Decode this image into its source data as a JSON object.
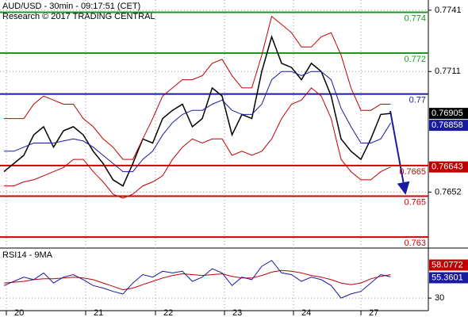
{
  "chart_data": [
    {
      "type": "line",
      "title": "AUD/USD - 30min - 09:17:51 (CET)",
      "subtitle": "Research © 2017 TRADING CENTRAL",
      "x": [
        0,
        1,
        2,
        3,
        4,
        5,
        6,
        7,
        8,
        9,
        10,
        11,
        12,
        13,
        14,
        15,
        16,
        17,
        18,
        19,
        20,
        21,
        22,
        23,
        24,
        25,
        26,
        27,
        28,
        29,
        30,
        31,
        32,
        33,
        34,
        35,
        36,
        37,
        38,
        39
      ],
      "xlim": [
        -0.4,
        42.8
      ],
      "ylim": [
        0.7625,
        0.7746
      ],
      "yticks": [
        0.7652,
        0.7711,
        0.7741
      ],
      "grid": true,
      "series": [
        {
          "color": "#000000",
          "values": [
            0.7662,
            0.7666,
            0.767,
            0.768,
            0.7684,
            0.7674,
            0.7682,
            0.7684,
            0.768,
            0.7672,
            0.7666,
            0.7658,
            0.7655,
            0.7666,
            0.7678,
            0.7676,
            0.7688,
            0.7692,
            0.7695,
            0.7684,
            0.7688,
            0.7703,
            0.7699,
            0.768,
            0.769,
            0.7688,
            0.7711,
            0.7728,
            0.7715,
            0.7713,
            0.7707,
            0.7715,
            0.7711,
            0.7699,
            0.7678,
            0.7672,
            0.7668,
            0.7678,
            0.769,
            0.76905
          ]
        },
        {
          "color": "#c00000",
          "values": [
            0.7688,
            0.7688,
            0.7688,
            0.7695,
            0.7699,
            0.7697,
            0.7695,
            0.7695,
            0.7688,
            0.7684,
            0.7678,
            0.7674,
            0.7668,
            0.7668,
            0.7678,
            0.7688,
            0.7699,
            0.7703,
            0.7707,
            0.7707,
            0.7709,
            0.7715,
            0.7717,
            0.7709,
            0.7703,
            0.7703,
            0.7719,
            0.7738,
            0.7734,
            0.773,
            0.7723,
            0.7723,
            0.7728,
            0.773,
            0.7719,
            0.7703,
            0.7692,
            0.7692,
            0.7695,
            0.7695
          ]
        },
        {
          "color": "#c00000",
          "values": [
            0.7655,
            0.7655,
            0.7657,
            0.7658,
            0.766,
            0.7662,
            0.7664,
            0.7668,
            0.7668,
            0.7662,
            0.7657,
            0.7651,
            0.7649,
            0.7651,
            0.7655,
            0.7657,
            0.766,
            0.7668,
            0.7674,
            0.7678,
            0.7676,
            0.7678,
            0.7678,
            0.767,
            0.7672,
            0.767,
            0.7672,
            0.7678,
            0.7688,
            0.7695,
            0.7697,
            0.7703,
            0.7699,
            0.7688,
            0.7668,
            0.7662,
            0.7658,
            0.7658,
            0.7662,
            0.76643
          ]
        },
        {
          "color": "#1a1aa0",
          "values": [
            0.7672,
            0.7672,
            0.7674,
            0.7676,
            0.7676,
            0.7676,
            0.7677,
            0.7678,
            0.7677,
            0.7674,
            0.767,
            0.7666,
            0.7662,
            0.7662,
            0.7668,
            0.7672,
            0.768,
            0.7686,
            0.769,
            0.7692,
            0.7692,
            0.7695,
            0.7697,
            0.7692,
            0.769,
            0.769,
            0.7695,
            0.7707,
            0.7711,
            0.7711,
            0.7709,
            0.7711,
            0.7711,
            0.7707,
            0.7693,
            0.7684,
            0.7676,
            0.7676,
            0.7678,
            0.76858
          ]
        }
      ],
      "levels": [
        {
          "value": 0.774,
          "color": "#1a9a1a"
        },
        {
          "value": 0.772,
          "color": "#1a9a1a"
        },
        {
          "value": 0.77,
          "color": "#1a1aa0"
        },
        {
          "value": 0.7665,
          "color": "#d00000"
        },
        {
          "value": 0.765,
          "color": "#d00000"
        },
        {
          "value": 0.763,
          "color": "#d00000"
        }
      ]
    },
    {
      "type": "line",
      "title": "RSI14 - 9MA",
      "xlim": [
        -0.4,
        42.8
      ],
      "xticks": [
        {
          "value": 0.24,
          "label": "20"
        },
        {
          "value": 8.24,
          "label": "21"
        },
        {
          "value": 15.28,
          "label": "22"
        },
        {
          "value": 22.24,
          "label": "23"
        },
        {
          "value": 29.2,
          "label": "24"
        },
        {
          "value": 36,
          "label": "27"
        }
      ],
      "ylim": [
        15,
        85
      ],
      "yticks": [
        30
      ],
      "series": [
        {
          "color": "#c00000",
          "values": [
            48,
            49,
            50,
            52,
            53,
            53,
            54,
            55,
            54,
            52,
            48,
            44,
            40,
            42,
            46,
            50,
            54,
            57,
            59,
            58,
            57,
            58,
            59,
            56,
            54,
            54,
            57,
            61,
            63,
            62,
            60,
            57,
            55,
            52,
            48,
            46,
            48,
            53,
            56,
            58.0772
          ]
        },
        {
          "color": "#1a1aa0",
          "values": [
            45,
            50,
            55,
            52,
            60,
            48,
            55,
            58,
            52,
            45,
            42,
            38,
            35,
            48,
            58,
            55,
            62,
            60,
            62,
            50,
            55,
            65,
            60,
            45,
            55,
            52,
            68,
            75,
            60,
            58,
            50,
            55,
            52,
            45,
            30,
            35,
            38,
            48,
            58,
            55.3601
          ]
        }
      ]
    }
  ]
}
